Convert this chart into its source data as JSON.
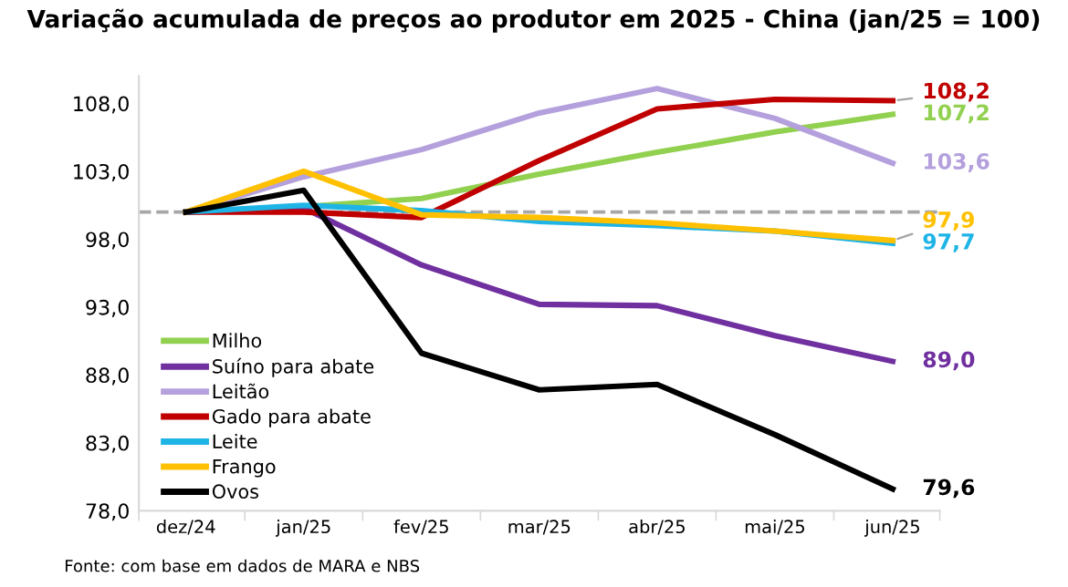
{
  "chart_data": {
    "type": "line",
    "title": "Variação acumulada de preços ao produtor em 2025 - China (jan/25 = 100)",
    "categories": [
      "dez/24",
      "jan/25",
      "fev/25",
      "mar/25",
      "abr/25",
      "mai/25",
      "jun/25"
    ],
    "series": [
      {
        "name": "Milho",
        "color": "#92d050",
        "values": [
          100,
          100.4,
          101.0,
          102.8,
          104.4,
          105.9,
          107.2
        ],
        "value_labels": [
          null,
          null,
          null,
          null,
          null,
          null,
          "107,2"
        ]
      },
      {
        "name": "Suíno para abate",
        "color": "#7030a0",
        "values": [
          100,
          100.3,
          96.1,
          93.2,
          93.1,
          90.9,
          89.0
        ],
        "value_labels": [
          null,
          null,
          null,
          null,
          null,
          null,
          "89,0"
        ]
      },
      {
        "name": "Leitão",
        "color": "#b4a0dc",
        "values": [
          100,
          102.6,
          104.6,
          107.3,
          109.1,
          106.9,
          103.6
        ],
        "value_labels": [
          null,
          null,
          null,
          null,
          null,
          null,
          "103,6"
        ]
      },
      {
        "name": "Gado para abate",
        "color": "#c00000",
        "values": [
          100,
          100.0,
          99.6,
          103.8,
          107.6,
          108.3,
          108.2
        ],
        "value_labels": [
          null,
          null,
          null,
          null,
          null,
          null,
          "108,2"
        ]
      },
      {
        "name": "Leite",
        "color": "#1eb4e6",
        "values": [
          100,
          100.5,
          100.1,
          99.3,
          99.0,
          98.6,
          97.7
        ],
        "value_labels": [
          null,
          null,
          null,
          null,
          null,
          null,
          "97,7"
        ]
      },
      {
        "name": "Frango",
        "color": "#ffc000",
        "values": [
          100,
          103.0,
          99.8,
          99.6,
          99.2,
          98.6,
          97.9
        ],
        "value_labels": [
          null,
          null,
          null,
          null,
          null,
          null,
          "97,9"
        ]
      },
      {
        "name": "Ovos",
        "color": "#000000",
        "values": [
          100,
          101.6,
          89.6,
          86.9,
          87.3,
          83.6,
          79.6
        ],
        "value_labels": [
          null,
          null,
          null,
          null,
          null,
          null,
          "79,6"
        ]
      }
    ],
    "ylim": [
      78,
      110
    ],
    "yticks": [
      {
        "value": 78,
        "label": "78,0"
      },
      {
        "value": 83,
        "label": "83,0"
      },
      {
        "value": 88,
        "label": "88,0"
      },
      {
        "value": 93,
        "label": "93,0"
      },
      {
        "value": 98,
        "label": "98,0"
      },
      {
        "value": 103,
        "label": "103,0"
      },
      {
        "value": 108,
        "label": "108,0"
      }
    ],
    "ref_lines": [
      {
        "axis": "y",
        "value": 100,
        "label": null,
        "color": "#a6a6a6",
        "line_style": "dashed"
      }
    ],
    "annotations": [
      "Fonte: com base em dados de MARA e NBS"
    ],
    "grid": false,
    "legend": "left",
    "line_style": "solid",
    "marker": "none"
  }
}
